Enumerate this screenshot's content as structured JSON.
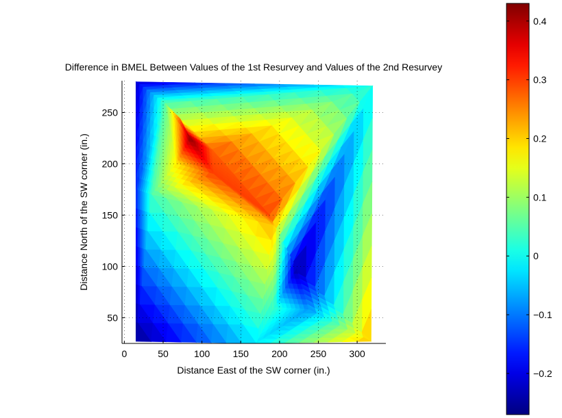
{
  "chart_data": {
    "type": "heatmap",
    "title": "Difference in BMEL Between Values of the 1st Resurvey and Values of the 2nd Resurvey",
    "xlabel": "Distance East of the SW corner (in.)",
    "ylabel": "Distance North of the SW corner (in.)",
    "xlim": [
      -3,
      337
    ],
    "ylim": [
      25,
      281
    ],
    "xticks": [
      0,
      50,
      100,
      150,
      200,
      250,
      300
    ],
    "yticks": [
      50,
      100,
      150,
      200,
      250
    ],
    "grid": "dotted",
    "colormap": "jet",
    "colorbar": {
      "range": [
        -0.27,
        0.43
      ],
      "ticks": [
        "0.4",
        "0.3",
        "0.2",
        "0.1",
        "0",
        "−0.1",
        "−0.2"
      ],
      "tick_values": [
        0.4,
        0.3,
        0.2,
        0.1,
        0,
        -0.1,
        -0.2
      ],
      "position": "right"
    },
    "vertices": [
      {
        "id": "v1",
        "x": 15,
        "y": 280,
        "value": -0.22
      },
      {
        "id": "v2",
        "x": 320,
        "y": 276,
        "value": 0.0
      },
      {
        "id": "v3",
        "x": 52,
        "y": 259,
        "value": 0.05
      },
      {
        "id": "v4",
        "x": 72,
        "y": 244,
        "value": 0.26
      },
      {
        "id": "v5",
        "x": 85,
        "y": 225,
        "value": 0.42
      },
      {
        "id": "v6",
        "x": 113,
        "y": 214,
        "value": 0.28
      },
      {
        "id": "v7",
        "x": 67,
        "y": 200,
        "value": 0.18
      },
      {
        "id": "v8",
        "x": 115,
        "y": 190,
        "value": 0.3
      },
      {
        "id": "v9",
        "x": 35,
        "y": 170,
        "value": 0.04
      },
      {
        "id": "v10",
        "x": 15,
        "y": 175,
        "value": -0.15
      },
      {
        "id": "v11",
        "x": 187,
        "y": 150,
        "value": 0.3
      },
      {
        "id": "v12",
        "x": 192,
        "y": 140,
        "value": 0.22
      },
      {
        "id": "v13",
        "x": 222,
        "y": 98,
        "value": -0.25
      },
      {
        "id": "v14",
        "x": 193,
        "y": 60,
        "value": 0.03
      },
      {
        "id": "v15",
        "x": 238,
        "y": 58,
        "value": -0.08
      },
      {
        "id": "v16",
        "x": 318,
        "y": 27,
        "value": 0.22
      },
      {
        "id": "v17",
        "x": 170,
        "y": 25,
        "value": -0.02
      },
      {
        "id": "v18",
        "x": 15,
        "y": 27,
        "value": -0.26
      }
    ],
    "triangles": [
      [
        "v1",
        "v2",
        "v3"
      ],
      [
        "v3",
        "v2",
        "v6"
      ],
      [
        "v6",
        "v2",
        "v11"
      ],
      [
        "v2",
        "v13",
        "v11"
      ],
      [
        "v2",
        "v16",
        "v13"
      ],
      [
        "v3",
        "v4",
        "v7"
      ],
      [
        "v4",
        "v5",
        "v7"
      ],
      [
        "v5",
        "v6",
        "v8"
      ],
      [
        "v5",
        "v8",
        "v7"
      ],
      [
        "v3",
        "v6",
        "v5"
      ],
      [
        "v3",
        "v5",
        "v4"
      ],
      [
        "v1",
        "v3",
        "v10"
      ],
      [
        "v3",
        "v9",
        "v10"
      ],
      [
        "v3",
        "v7",
        "v9"
      ],
      [
        "v7",
        "v8",
        "v9"
      ],
      [
        "v6",
        "v11",
        "v8"
      ],
      [
        "v8",
        "v11",
        "v12"
      ],
      [
        "v9",
        "v8",
        "v12"
      ],
      [
        "v9",
        "v12",
        "v17"
      ],
      [
        "v12",
        "v14",
        "v17"
      ],
      [
        "v12",
        "v11",
        "v13"
      ],
      [
        "v12",
        "v13",
        "v14"
      ],
      [
        "v14",
        "v13",
        "v15"
      ],
      [
        "v13",
        "v16",
        "v15"
      ],
      [
        "v14",
        "v15",
        "v17"
      ],
      [
        "v15",
        "v16",
        "v17"
      ],
      [
        "v1",
        "v10",
        "v18"
      ],
      [
        "v10",
        "v9",
        "v18"
      ],
      [
        "v9",
        "v17",
        "v18"
      ]
    ]
  }
}
